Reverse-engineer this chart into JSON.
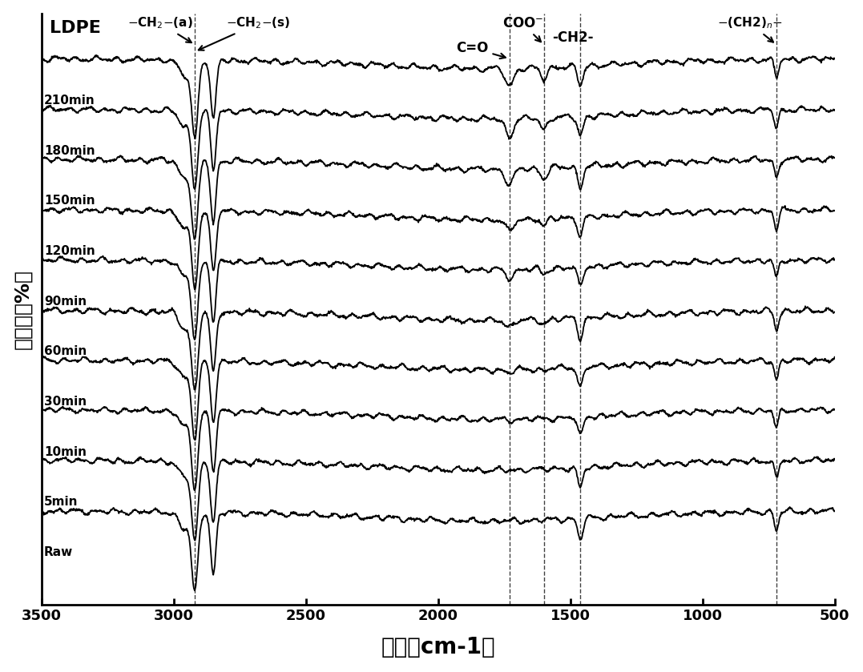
{
  "xlabel": "波数（cm-1）",
  "ylabel": "反射率（%）",
  "xticks": [
    3500,
    3000,
    2500,
    2000,
    1500,
    1000,
    500
  ],
  "sample_labels": [
    "Raw",
    "5min",
    "10min",
    "30min",
    "60min",
    "90min",
    "120min",
    "150min",
    "180min",
    "210min"
  ],
  "treatment_times": [
    0,
    5,
    10,
    30,
    60,
    90,
    120,
    150,
    180,
    210
  ],
  "dashed_lines": [
    2920,
    1730,
    1600,
    1462,
    720
  ],
  "background_color": "#ffffff",
  "line_color": "#000000"
}
